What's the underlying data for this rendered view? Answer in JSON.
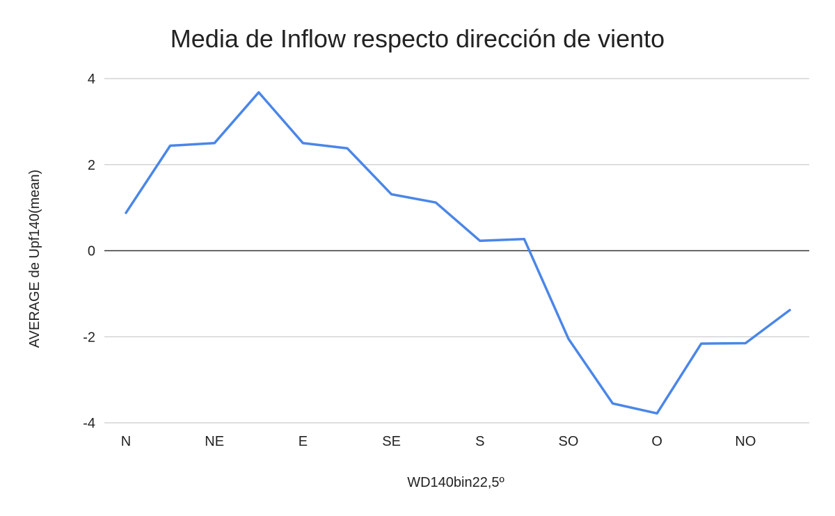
{
  "chart_data": {
    "type": "line",
    "title": "Media de Inflow respecto dirección de viento",
    "xlabel": "WD140bin22,5º",
    "ylabel": "AVERAGE de Upf140(mean)",
    "x_tick_labels": [
      "N",
      "",
      "NE",
      "",
      "E",
      "",
      "SE",
      "",
      "S",
      "",
      "SO",
      "",
      "O",
      "",
      "NO",
      ""
    ],
    "y_ticks": [
      -4,
      -2,
      0,
      2,
      4
    ],
    "ylim": [
      -4,
      4
    ],
    "grid": true,
    "legend": "none",
    "series": [
      {
        "color": "#4a86e8",
        "values": [
          0.88,
          2.44,
          2.5,
          3.68,
          2.5,
          2.38,
          1.31,
          1.12,
          0.23,
          0.27,
          -2.05,
          -3.55,
          -3.78,
          -2.16,
          -2.15,
          -1.38
        ]
      }
    ]
  }
}
